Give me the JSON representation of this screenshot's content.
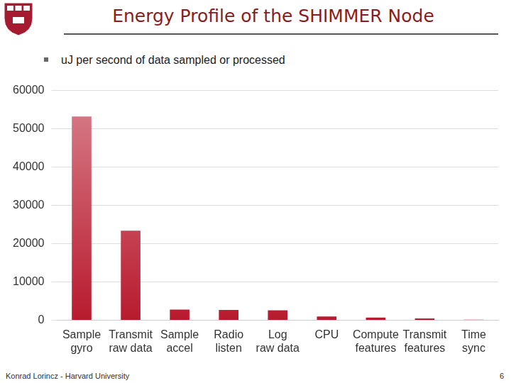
{
  "chart_data": {
    "type": "bar",
    "title": "Energy Profile of the SHIMMER Node",
    "subtitle": "uJ per second of data sampled or processed",
    "categories": [
      "Sample gyro",
      "Transmit raw data",
      "Sample accel",
      "Radio listen",
      "Log raw data",
      "CPU",
      "Compute features",
      "Transmit features",
      "Time sync"
    ],
    "values": [
      53200,
      23400,
      2800,
      2700,
      2600,
      1000,
      700,
      500,
      150
    ],
    "color": "#b81a2e",
    "ylim": [
      0,
      60000
    ],
    "yticks": [
      0,
      10000,
      20000,
      30000,
      40000,
      50000,
      60000
    ],
    "grid": true
  },
  "footer": "Konrad Lorincz - Harvard University",
  "page_number": 6
}
